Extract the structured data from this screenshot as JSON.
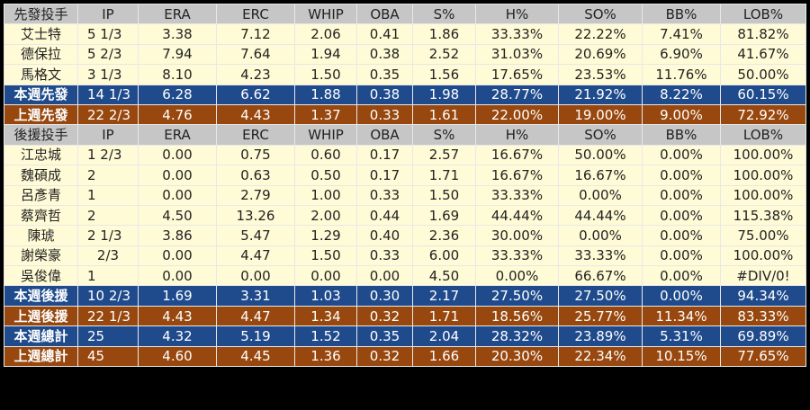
{
  "colors": {
    "header": "#c6c6c6",
    "row": "#fffbd6",
    "this_week": "#1f4b8c",
    "last_week": "#98480e"
  },
  "columns": [
    "IP",
    "ERA",
    "ERC",
    "WHIP",
    "OBA",
    "S%",
    "H%",
    "SO%",
    "BB%",
    "LOB%"
  ],
  "sections": [
    {
      "header": "先發投手",
      "rows": [
        {
          "type": "row",
          "name": "艾士特",
          "v": [
            "5 1/3",
            "3.38",
            "7.12",
            "2.06",
            "0.41",
            "1.86",
            "33.33%",
            "22.22%",
            "7.41%",
            "81.82%"
          ]
        },
        {
          "type": "row",
          "name": "德保拉",
          "v": [
            "5 2/3",
            "7.94",
            "7.64",
            "1.94",
            "0.38",
            "2.52",
            "31.03%",
            "20.69%",
            "6.90%",
            "41.67%"
          ]
        },
        {
          "type": "row",
          "name": "馬格文",
          "v": [
            "3 1/3",
            "8.10",
            "4.23",
            "1.50",
            "0.35",
            "1.56",
            "17.65%",
            "23.53%",
            "11.76%",
            "50.00%"
          ]
        },
        {
          "type": "blue",
          "name": "本週先發",
          "v": [
            "14 1/3",
            "6.28",
            "6.62",
            "1.88",
            "0.38",
            "1.98",
            "28.77%",
            "21.92%",
            "8.22%",
            "60.15%"
          ]
        },
        {
          "type": "brown",
          "name": "上週先發",
          "v": [
            "22 2/3",
            "4.76",
            "4.43",
            "1.37",
            "0.33",
            "1.61",
            "22.00%",
            "19.00%",
            "9.00%",
            "72.92%"
          ]
        }
      ]
    },
    {
      "header": "後援投手",
      "rows": [
        {
          "type": "row",
          "name": "江忠城",
          "v": [
            "1 2/3",
            "0.00",
            "0.75",
            "0.60",
            "0.17",
            "2.57",
            "16.67%",
            "50.00%",
            "0.00%",
            "100.00%"
          ]
        },
        {
          "type": "row",
          "name": "魏碩成",
          "v": [
            "2",
            "0.00",
            "0.63",
            "0.50",
            "0.17",
            "1.71",
            "16.67%",
            "16.67%",
            "0.00%",
            "100.00%"
          ]
        },
        {
          "type": "row",
          "name": "呂彥青",
          "v": [
            "1",
            "0.00",
            "2.79",
            "1.00",
            "0.33",
            "1.50",
            "33.33%",
            "0.00%",
            "0.00%",
            "100.00%"
          ]
        },
        {
          "type": "row",
          "name": "蔡齊哲",
          "v": [
            "2",
            "4.50",
            "13.26",
            "2.00",
            "0.44",
            "1.69",
            "44.44%",
            "44.44%",
            "0.00%",
            "115.38%"
          ]
        },
        {
          "type": "row",
          "name": "陳琥",
          "v": [
            "2 1/3",
            "3.86",
            "5.47",
            "1.29",
            "0.40",
            "2.36",
            "30.00%",
            "0.00%",
            "0.00%",
            "75.00%"
          ]
        },
        {
          "type": "row",
          "name": "謝榮豪",
          "v": [
            "2/3",
            "0.00",
            "4.47",
            "1.50",
            "0.33",
            "6.00",
            "33.33%",
            "33.33%",
            "0.00%",
            "100.00%"
          ]
        },
        {
          "type": "row",
          "name": "吳俊偉",
          "v": [
            "1",
            "0.00",
            "0.00",
            "0.00",
            "0.00",
            "4.50",
            "0.00%",
            "66.67%",
            "0.00%",
            "#DIV/0!"
          ]
        },
        {
          "type": "blue",
          "name": "本週後援",
          "v": [
            "10 2/3",
            "1.69",
            "3.31",
            "1.03",
            "0.30",
            "2.17",
            "27.50%",
            "27.50%",
            "0.00%",
            "94.34%"
          ]
        },
        {
          "type": "brown",
          "name": "上週後援",
          "v": [
            "22 1/3",
            "4.43",
            "4.47",
            "1.34",
            "0.32",
            "1.71",
            "18.56%",
            "25.77%",
            "11.34%",
            "83.33%"
          ]
        },
        {
          "type": "blue",
          "name": "本週總計",
          "v": [
            "25",
            "4.32",
            "5.19",
            "1.52",
            "0.35",
            "2.04",
            "28.32%",
            "23.89%",
            "5.31%",
            "69.89%"
          ]
        },
        {
          "type": "brown",
          "name": "上週總計",
          "v": [
            "45",
            "4.60",
            "4.45",
            "1.36",
            "0.32",
            "1.66",
            "20.30%",
            "22.34%",
            "10.15%",
            "77.65%"
          ]
        }
      ]
    }
  ]
}
